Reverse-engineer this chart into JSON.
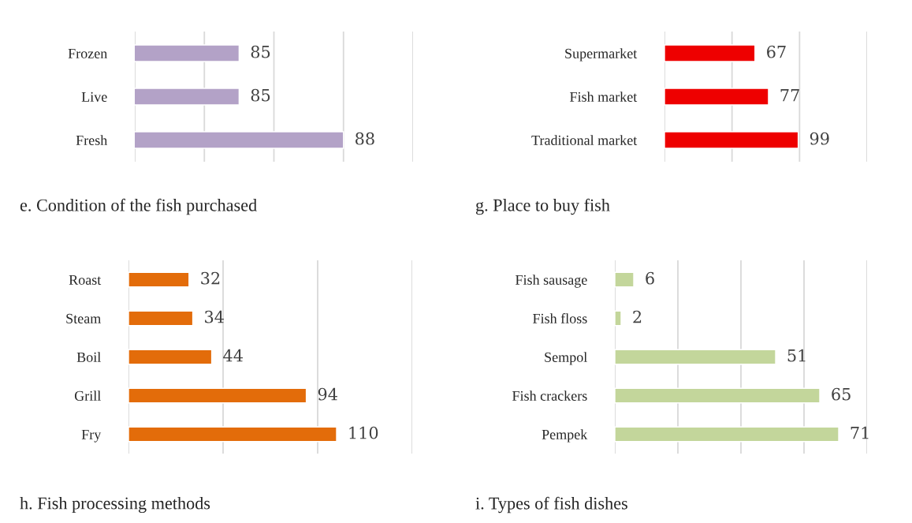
{
  "chart_data": [
    {
      "type": "bar",
      "orientation": "horizontal",
      "title": "e. Condition of the fish purchased",
      "categories": [
        "Frozen",
        "Live",
        "Fresh"
      ],
      "values": [
        85,
        85,
        88
      ],
      "color": "#b3a2c7",
      "xlim": [
        82,
        90
      ],
      "xticks": [
        {
          "value": 82,
          "label": null
        },
        {
          "value": 84,
          "label": null
        },
        {
          "value": 86,
          "label": null
        },
        {
          "value": 88,
          "label": null
        },
        {
          "value": 90,
          "label": null
        }
      ],
      "tick_labels": "y",
      "data_labels": true,
      "grid": "x"
    },
    {
      "type": "bar",
      "orientation": "horizontal",
      "title": "g. Place to buy fish",
      "categories": [
        "Supermarket",
        "Fish market",
        "Traditional market"
      ],
      "values": [
        67,
        77,
        99
      ],
      "color": "#ee0000",
      "xlim": [
        0,
        150
      ],
      "xticks": [
        {
          "value": 0,
          "label": null
        },
        {
          "value": 50,
          "label": null
        },
        {
          "value": 100,
          "label": null
        },
        {
          "value": 150,
          "label": null
        }
      ],
      "tick_labels": "y",
      "data_labels": true,
      "grid": "x"
    },
    {
      "type": "bar",
      "orientation": "horizontal",
      "title": "h. Fish processing methods",
      "categories": [
        "Roast",
        "Steam",
        "Boil",
        "Grill",
        "Fry"
      ],
      "values": [
        32,
        34,
        44,
        94,
        110
      ],
      "color": "#e36c0a",
      "xlim": [
        0,
        150
      ],
      "xticks": [
        {
          "value": 0,
          "label": null
        },
        {
          "value": 50,
          "label": null
        },
        {
          "value": 100,
          "label": null
        },
        {
          "value": 150,
          "label": null
        }
      ],
      "tick_labels": "y",
      "data_labels": true,
      "grid": "x"
    },
    {
      "type": "bar",
      "orientation": "horizontal",
      "title": "i. Types of fish dishes",
      "categories": [
        "Fish sausage",
        "Fish floss",
        "Sempol",
        "Fish crackers",
        "Pempek"
      ],
      "values": [
        6,
        2,
        51,
        65,
        71
      ],
      "color": "#c3d69b",
      "xlim": [
        0,
        80
      ],
      "xticks": [
        {
          "value": 0,
          "label": null
        },
        {
          "value": 20,
          "label": null
        },
        {
          "value": 40,
          "label": null
        },
        {
          "value": 60,
          "label": null
        },
        {
          "value": 80,
          "label": null
        }
      ],
      "tick_labels": "y",
      "data_labels": true,
      "grid": "x"
    }
  ]
}
